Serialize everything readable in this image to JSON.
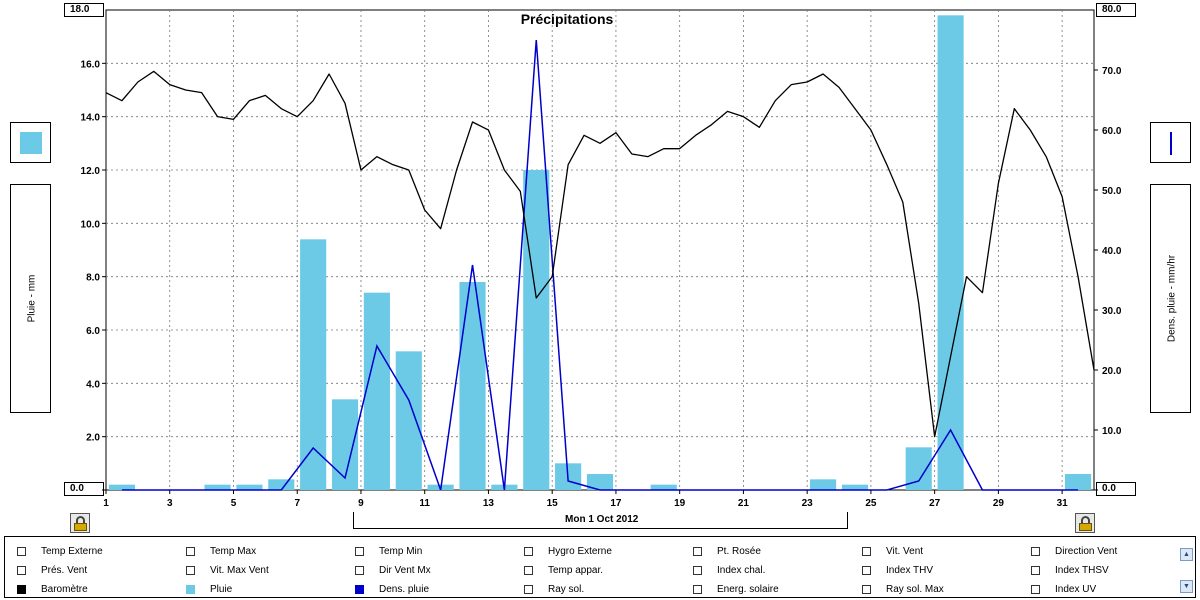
{
  "chart_data": {
    "type": "bar",
    "title": "Précipitations",
    "x_ticks": [
      "1",
      "3",
      "5",
      "7",
      "9",
      "11",
      "13",
      "15",
      "17",
      "19",
      "21",
      "23",
      "25",
      "27",
      "29",
      "31"
    ],
    "date_label": "Mon 1 Oct 2012",
    "y_left": {
      "label": "Pluie - mm",
      "ticks": [
        "0.0",
        "2.0",
        "4.0",
        "6.0",
        "8.0",
        "10.0",
        "12.0",
        "14.0",
        "16.0"
      ],
      "max_label": "18.0",
      "min_label": "0.0",
      "range": [
        0,
        18
      ]
    },
    "y_right": {
      "label": "Dens. pluie - mm/hr",
      "ticks": [
        "0.0",
        "10.0",
        "20.0",
        "30.0",
        "40.0",
        "50.0",
        "60.0",
        "70.0"
      ],
      "max_label": "80.0",
      "min_label": "0.0",
      "range": [
        0,
        80
      ]
    },
    "x_range": [
      1,
      32
    ],
    "grid": true,
    "series": [
      {
        "name": "Pluie",
        "type": "bar",
        "color": "#6ccae6",
        "x": [
          1.5,
          4.5,
          5.5,
          6.5,
          7.5,
          8.5,
          9.5,
          10.5,
          11.5,
          12.5,
          13.5,
          14.5,
          15.5,
          16.5,
          18.5,
          23.5,
          24.5,
          26.5,
          27.5,
          31.5
        ],
        "values": [
          0.2,
          0.2,
          0.2,
          0.4,
          9.4,
          3.4,
          7.4,
          5.2,
          0.2,
          7.8,
          0.2,
          12.0,
          1.0,
          0.6,
          0.2,
          0.4,
          0.2,
          1.6,
          17.8,
          0.6
        ]
      },
      {
        "name": "Dens. pluie",
        "type": "line",
        "color": "#0000cc",
        "x": [
          1.5,
          6.5,
          7.5,
          8.5,
          9.5,
          10.5,
          11.5,
          12.5,
          13.5,
          14.5,
          15.5,
          16.5,
          25.5,
          26.5,
          27.5,
          28.5,
          31.5
        ],
        "values": [
          0,
          0,
          7,
          2,
          24,
          15,
          0,
          37.5,
          0,
          75,
          1.5,
          0,
          0,
          1.5,
          10,
          0,
          0
        ]
      },
      {
        "name": "Baromètre",
        "type": "line",
        "color": "#000000",
        "y_unit_note": "unscaled overlay",
        "x": [
          1,
          1.5,
          2,
          2.5,
          3,
          3.5,
          4,
          4.5,
          5,
          5.5,
          6,
          6.5,
          7,
          7.5,
          8,
          8.5,
          9,
          9.5,
          10,
          10.5,
          11,
          11.5,
          12,
          12.5,
          13,
          13.5,
          14,
          14.5,
          15,
          15.5,
          16,
          16.5,
          17,
          17.5,
          18,
          18.5,
          19,
          19.5,
          20,
          20.5,
          21,
          21.5,
          22,
          22.5,
          23,
          23.5,
          24,
          24.5,
          25,
          25.5,
          26,
          26.5,
          27,
          27.5,
          28,
          28.5,
          29,
          29.5,
          30,
          30.5,
          31,
          31.5,
          32
        ],
        "values": [
          14.9,
          14.6,
          15.3,
          15.7,
          15.2,
          15.0,
          14.9,
          14.0,
          13.9,
          14.6,
          14.8,
          14.3,
          14.0,
          14.6,
          15.6,
          14.5,
          12.0,
          12.5,
          12.2,
          12.0,
          10.5,
          9.8,
          12.0,
          13.8,
          13.5,
          12.0,
          11.2,
          7.2,
          8.0,
          12.2,
          13.3,
          13.0,
          13.4,
          12.6,
          12.5,
          12.8,
          12.8,
          13.3,
          13.7,
          14.2,
          14.0,
          13.6,
          14.6,
          15.2,
          15.3,
          15.6,
          15.1,
          14.3,
          13.5,
          12.2,
          10.8,
          7.0,
          2.0,
          5.0,
          8.0,
          7.4,
          11.5,
          14.3,
          13.5,
          12.5,
          11.0,
          8.0,
          4.5
        ]
      }
    ]
  },
  "legend": {
    "items": [
      {
        "label": "Temp Externe",
        "checked": false,
        "color": ""
      },
      {
        "label": "Temp Max",
        "checked": false,
        "color": ""
      },
      {
        "label": "Temp Min",
        "checked": false,
        "color": ""
      },
      {
        "label": "Hygro Externe",
        "checked": false,
        "color": ""
      },
      {
        "label": "Pt. Rosée",
        "checked": false,
        "color": ""
      },
      {
        "label": "Vit. Vent",
        "checked": false,
        "color": ""
      },
      {
        "label": "Direction Vent",
        "checked": false,
        "color": ""
      },
      {
        "label": "Prés. Vent",
        "checked": false,
        "color": ""
      },
      {
        "label": "Vit. Max Vent",
        "checked": false,
        "color": ""
      },
      {
        "label": "Dir Vent Mx",
        "checked": false,
        "color": ""
      },
      {
        "label": "Temp appar.",
        "checked": false,
        "color": ""
      },
      {
        "label": "Index chal.",
        "checked": false,
        "color": ""
      },
      {
        "label": "Index THV",
        "checked": false,
        "color": ""
      },
      {
        "label": "Index THSV",
        "checked": false,
        "color": ""
      },
      {
        "label": "Baromètre",
        "checked": true,
        "color": "#000000"
      },
      {
        "label": "Pluie",
        "checked": true,
        "color": "#6ccae6"
      },
      {
        "label": "Dens. pluie",
        "checked": true,
        "color": "#0000cc"
      },
      {
        "label": "Ray sol.",
        "checked": false,
        "color": ""
      },
      {
        "label": "Energ. solaire",
        "checked": false,
        "color": ""
      },
      {
        "label": "Ray sol. Max",
        "checked": false,
        "color": ""
      },
      {
        "label": "Index UV",
        "checked": false,
        "color": ""
      }
    ]
  },
  "icons": {
    "left_swatch": "bar-swatch",
    "right_swatch": "line-swatch",
    "lock": "lock-icon",
    "scroll_up": "scroll-up-icon",
    "scroll_down": "scroll-down-icon"
  }
}
